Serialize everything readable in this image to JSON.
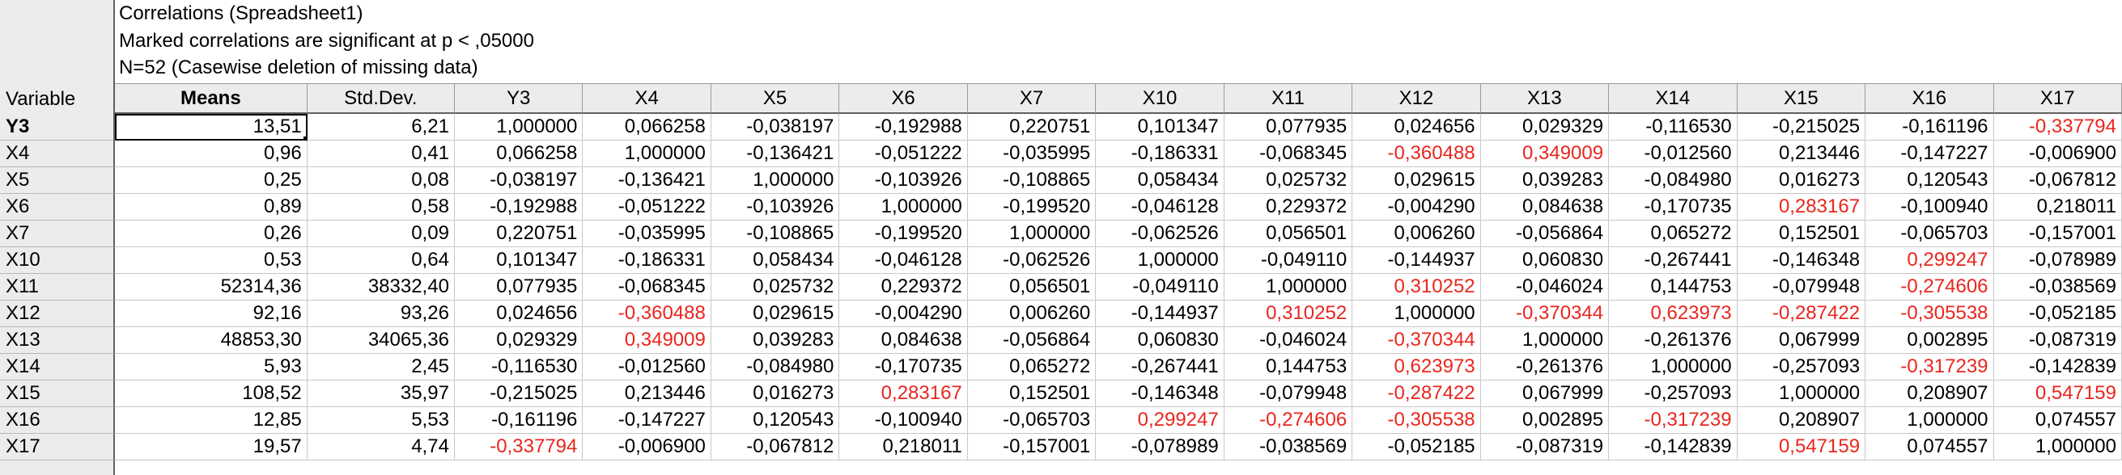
{
  "window": {
    "title_lines": [
      "Correlations (Spreadsheet1)",
      "Marked correlations are significant at p < ,05000",
      "N=52 (Casewise deletion of missing data)"
    ],
    "corner_label": "Variable"
  },
  "table": {
    "columns": [
      "Means",
      "Std.Dev.",
      "Y3",
      "X4",
      "X5",
      "X6",
      "X7",
      "X10",
      "X11",
      "X12",
      "X13",
      "X14",
      "X15",
      "X16",
      "X17"
    ],
    "bold_column": "Means",
    "active_row": "Y3",
    "significance_color": "#e8261e",
    "rows": [
      {
        "name": "Y3",
        "cells": [
          {
            "v": "13,51"
          },
          {
            "v": "6,21"
          },
          {
            "v": "1,000000"
          },
          {
            "v": "0,066258"
          },
          {
            "v": "-0,038197"
          },
          {
            "v": "-0,192988"
          },
          {
            "v": "0,220751"
          },
          {
            "v": "0,101347"
          },
          {
            "v": "0,077935"
          },
          {
            "v": "0,024656"
          },
          {
            "v": "0,029329"
          },
          {
            "v": "-0,116530"
          },
          {
            "v": "-0,215025"
          },
          {
            "v": "-0,161196"
          },
          {
            "v": "-0,337794",
            "sig": true
          }
        ]
      },
      {
        "name": "X4",
        "cells": [
          {
            "v": "0,96"
          },
          {
            "v": "0,41"
          },
          {
            "v": "0,066258"
          },
          {
            "v": "1,000000"
          },
          {
            "v": "-0,136421"
          },
          {
            "v": "-0,051222"
          },
          {
            "v": "-0,035995"
          },
          {
            "v": "-0,186331"
          },
          {
            "v": "-0,068345"
          },
          {
            "v": "-0,360488",
            "sig": true
          },
          {
            "v": "0,349009",
            "sig": true
          },
          {
            "v": "-0,012560"
          },
          {
            "v": "0,213446"
          },
          {
            "v": "-0,147227"
          },
          {
            "v": "-0,006900"
          }
        ]
      },
      {
        "name": "X5",
        "cells": [
          {
            "v": "0,25"
          },
          {
            "v": "0,08"
          },
          {
            "v": "-0,038197"
          },
          {
            "v": "-0,136421"
          },
          {
            "v": "1,000000"
          },
          {
            "v": "-0,103926"
          },
          {
            "v": "-0,108865"
          },
          {
            "v": "0,058434"
          },
          {
            "v": "0,025732"
          },
          {
            "v": "0,029615"
          },
          {
            "v": "0,039283"
          },
          {
            "v": "-0,084980"
          },
          {
            "v": "0,016273"
          },
          {
            "v": "0,120543"
          },
          {
            "v": "-0,067812"
          }
        ]
      },
      {
        "name": "X6",
        "cells": [
          {
            "v": "0,89"
          },
          {
            "v": "0,58"
          },
          {
            "v": "-0,192988"
          },
          {
            "v": "-0,051222"
          },
          {
            "v": "-0,103926"
          },
          {
            "v": "1,000000"
          },
          {
            "v": "-0,199520"
          },
          {
            "v": "-0,046128"
          },
          {
            "v": "0,229372"
          },
          {
            "v": "-0,004290"
          },
          {
            "v": "0,084638"
          },
          {
            "v": "-0,170735"
          },
          {
            "v": "0,283167",
            "sig": true
          },
          {
            "v": "-0,100940"
          },
          {
            "v": "0,218011"
          }
        ]
      },
      {
        "name": "X7",
        "cells": [
          {
            "v": "0,26"
          },
          {
            "v": "0,09"
          },
          {
            "v": "0,220751"
          },
          {
            "v": "-0,035995"
          },
          {
            "v": "-0,108865"
          },
          {
            "v": "-0,199520"
          },
          {
            "v": "1,000000"
          },
          {
            "v": "-0,062526"
          },
          {
            "v": "0,056501"
          },
          {
            "v": "0,006260"
          },
          {
            "v": "-0,056864"
          },
          {
            "v": "0,065272"
          },
          {
            "v": "0,152501"
          },
          {
            "v": "-0,065703"
          },
          {
            "v": "-0,157001"
          }
        ]
      },
      {
        "name": "X10",
        "cells": [
          {
            "v": "0,53"
          },
          {
            "v": "0,64"
          },
          {
            "v": "0,101347"
          },
          {
            "v": "-0,186331"
          },
          {
            "v": "0,058434"
          },
          {
            "v": "-0,046128"
          },
          {
            "v": "-0,062526"
          },
          {
            "v": "1,000000"
          },
          {
            "v": "-0,049110"
          },
          {
            "v": "-0,144937"
          },
          {
            "v": "0,060830"
          },
          {
            "v": "-0,267441"
          },
          {
            "v": "-0,146348"
          },
          {
            "v": "0,299247",
            "sig": true
          },
          {
            "v": "-0,078989"
          }
        ]
      },
      {
        "name": "X11",
        "cells": [
          {
            "v": "52314,36"
          },
          {
            "v": "38332,40"
          },
          {
            "v": "0,077935"
          },
          {
            "v": "-0,068345"
          },
          {
            "v": "0,025732"
          },
          {
            "v": "0,229372"
          },
          {
            "v": "0,056501"
          },
          {
            "v": "-0,049110"
          },
          {
            "v": "1,000000"
          },
          {
            "v": "0,310252",
            "sig": true
          },
          {
            "v": "-0,046024"
          },
          {
            "v": "0,144753"
          },
          {
            "v": "-0,079948"
          },
          {
            "v": "-0,274606",
            "sig": true
          },
          {
            "v": "-0,038569"
          }
        ]
      },
      {
        "name": "X12",
        "cells": [
          {
            "v": "92,16"
          },
          {
            "v": "93,26"
          },
          {
            "v": "0,024656"
          },
          {
            "v": "-0,360488",
            "sig": true
          },
          {
            "v": "0,029615"
          },
          {
            "v": "-0,004290"
          },
          {
            "v": "0,006260"
          },
          {
            "v": "-0,144937"
          },
          {
            "v": "0,310252",
            "sig": true
          },
          {
            "v": "1,000000"
          },
          {
            "v": "-0,370344",
            "sig": true
          },
          {
            "v": "0,623973",
            "sig": true
          },
          {
            "v": "-0,287422",
            "sig": true
          },
          {
            "v": "-0,305538",
            "sig": true
          },
          {
            "v": "-0,052185"
          }
        ]
      },
      {
        "name": "X13",
        "cells": [
          {
            "v": "48853,30"
          },
          {
            "v": "34065,36"
          },
          {
            "v": "0,029329"
          },
          {
            "v": "0,349009",
            "sig": true
          },
          {
            "v": "0,039283"
          },
          {
            "v": "0,084638"
          },
          {
            "v": "-0,056864"
          },
          {
            "v": "0,060830"
          },
          {
            "v": "-0,046024"
          },
          {
            "v": "-0,370344",
            "sig": true
          },
          {
            "v": "1,000000"
          },
          {
            "v": "-0,261376"
          },
          {
            "v": "0,067999"
          },
          {
            "v": "0,002895"
          },
          {
            "v": "-0,087319"
          }
        ]
      },
      {
        "name": "X14",
        "cells": [
          {
            "v": "5,93"
          },
          {
            "v": "2,45"
          },
          {
            "v": "-0,116530"
          },
          {
            "v": "-0,012560"
          },
          {
            "v": "-0,084980"
          },
          {
            "v": "-0,170735"
          },
          {
            "v": "0,065272"
          },
          {
            "v": "-0,267441"
          },
          {
            "v": "0,144753"
          },
          {
            "v": "0,623973",
            "sig": true
          },
          {
            "v": "-0,261376"
          },
          {
            "v": "1,000000"
          },
          {
            "v": "-0,257093"
          },
          {
            "v": "-0,317239",
            "sig": true
          },
          {
            "v": "-0,142839"
          }
        ]
      },
      {
        "name": "X15",
        "cells": [
          {
            "v": "108,52"
          },
          {
            "v": "35,97"
          },
          {
            "v": "-0,215025"
          },
          {
            "v": "0,213446"
          },
          {
            "v": "0,016273"
          },
          {
            "v": "0,283167",
            "sig": true
          },
          {
            "v": "0,152501"
          },
          {
            "v": "-0,146348"
          },
          {
            "v": "-0,079948"
          },
          {
            "v": "-0,287422",
            "sig": true
          },
          {
            "v": "0,067999"
          },
          {
            "v": "-0,257093"
          },
          {
            "v": "1,000000"
          },
          {
            "v": "0,208907"
          },
          {
            "v": "0,547159",
            "sig": true
          }
        ]
      },
      {
        "name": "X16",
        "cells": [
          {
            "v": "12,85"
          },
          {
            "v": "5,53"
          },
          {
            "v": "-0,161196"
          },
          {
            "v": "-0,147227"
          },
          {
            "v": "0,120543"
          },
          {
            "v": "-0,100940"
          },
          {
            "v": "-0,065703"
          },
          {
            "v": "0,299247",
            "sig": true
          },
          {
            "v": "-0,274606",
            "sig": true
          },
          {
            "v": "-0,305538",
            "sig": true
          },
          {
            "v": "0,002895"
          },
          {
            "v": "-0,317239",
            "sig": true
          },
          {
            "v": "0,208907"
          },
          {
            "v": "1,000000"
          },
          {
            "v": "0,074557"
          }
        ]
      },
      {
        "name": "X17",
        "cells": [
          {
            "v": "19,57"
          },
          {
            "v": "4,74"
          },
          {
            "v": "-0,337794",
            "sig": true
          },
          {
            "v": "-0,006900"
          },
          {
            "v": "-0,067812"
          },
          {
            "v": "0,218011"
          },
          {
            "v": "-0,157001"
          },
          {
            "v": "-0,078989"
          },
          {
            "v": "-0,038569"
          },
          {
            "v": "-0,052185"
          },
          {
            "v": "-0,087319"
          },
          {
            "v": "-0,142839"
          },
          {
            "v": "0,547159",
            "sig": true
          },
          {
            "v": "0,074557"
          },
          {
            "v": "1,000000"
          }
        ]
      }
    ]
  }
}
